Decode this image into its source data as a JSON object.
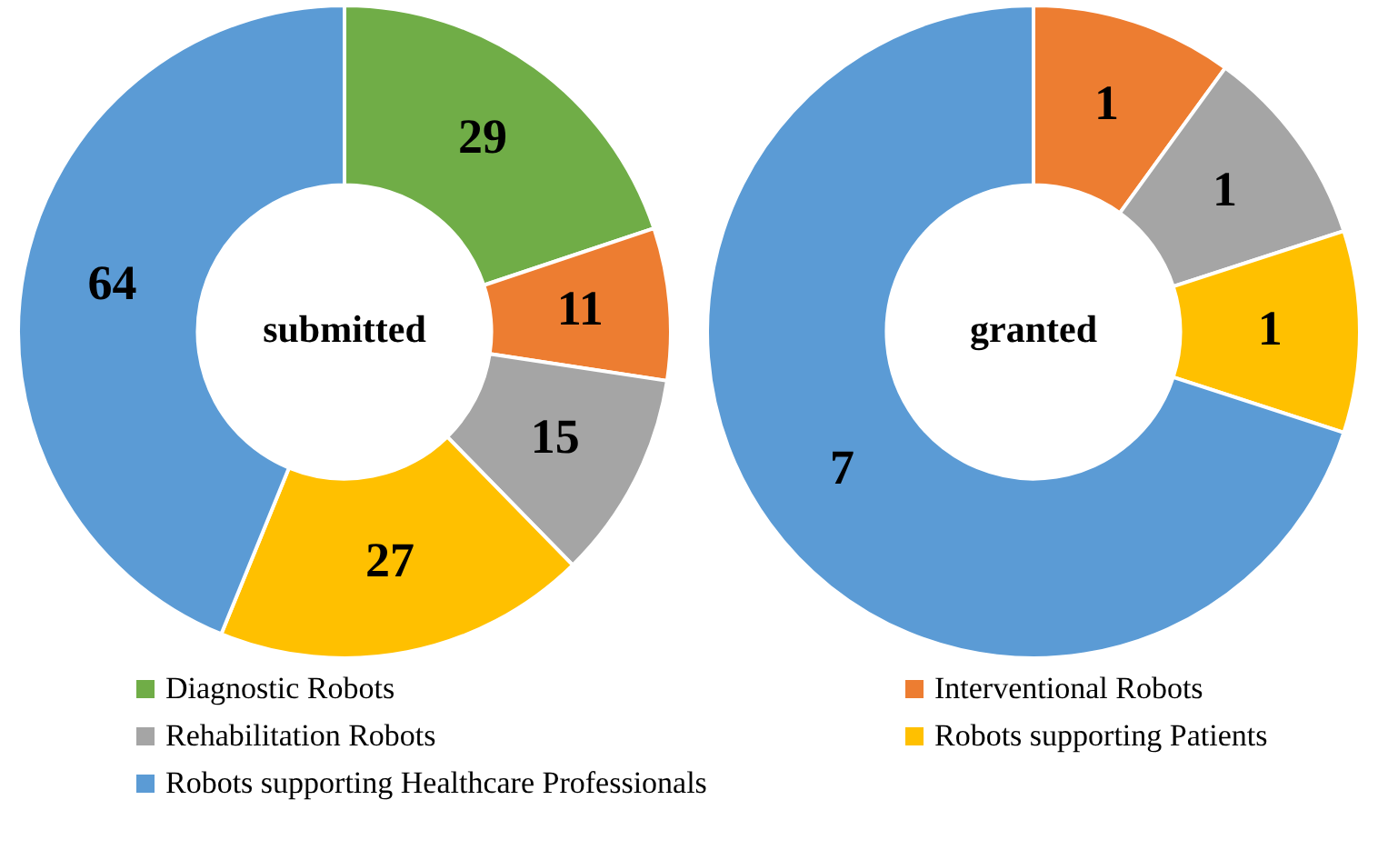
{
  "chart_data": {
    "type": "donut",
    "categories": [
      "Diagnostic Robots",
      "Interventional Robots",
      "Rehabilitation Robots",
      "Robots supporting Patients",
      "Robots supporting Healthcare Professionals"
    ],
    "colors": [
      "#70ad47",
      "#ed7d31",
      "#a5a5a5",
      "#ffc000",
      "#5b9bd5"
    ],
    "legend": "bottom",
    "series": [
      {
        "name": "submitted",
        "values": [
          29,
          11,
          15,
          27,
          64
        ],
        "value_labels": [
          "29",
          "11",
          "15",
          "27",
          "64"
        ]
      },
      {
        "name": "granted",
        "values": [
          0,
          1,
          1,
          1,
          7
        ],
        "value_labels": [
          null,
          "1",
          "1",
          "1",
          "7"
        ]
      }
    ]
  }
}
